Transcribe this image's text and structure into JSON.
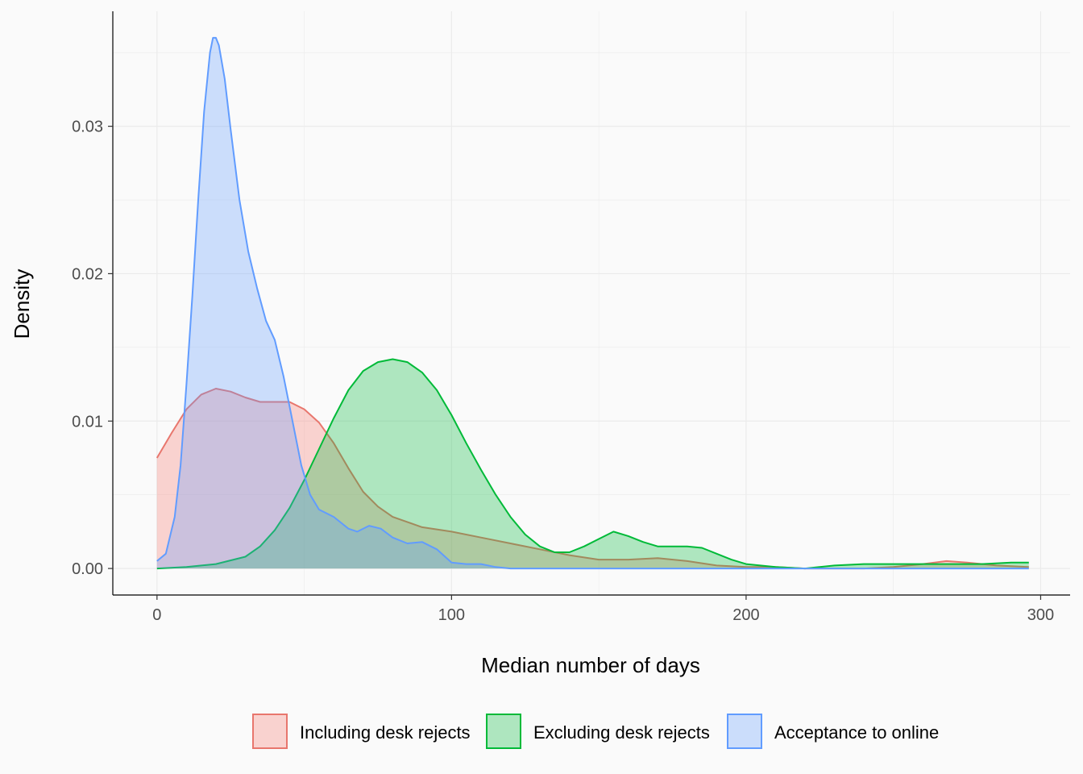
{
  "chart_data": {
    "type": "area",
    "subtype": "density",
    "title": "",
    "xlabel": "Median number of days",
    "ylabel": "Density",
    "xlim": [
      -15,
      310
    ],
    "ylim": [
      -0.0018,
      0.0378
    ],
    "x_ticks": [
      0,
      100,
      200,
      300
    ],
    "x_tick_labels": [
      "0",
      "100",
      "200",
      "300"
    ],
    "y_ticks": [
      0.0,
      0.01,
      0.02,
      0.03
    ],
    "y_tick_labels": [
      "0.00",
      "0.01",
      "0.02",
      "0.03"
    ],
    "grid": true,
    "legend_position": "bottom",
    "series": [
      {
        "name": "Including desk rejects",
        "line_color": "#e8766d",
        "fill_color": "#f8766d",
        "fill_opacity": 0.3,
        "points": [
          [
            0,
            0.0075
          ],
          [
            5,
            0.0092
          ],
          [
            10,
            0.0108
          ],
          [
            15,
            0.0118
          ],
          [
            20,
            0.0122
          ],
          [
            25,
            0.012
          ],
          [
            30,
            0.0116
          ],
          [
            35,
            0.0113
          ],
          [
            40,
            0.0113
          ],
          [
            45,
            0.0113
          ],
          [
            50,
            0.0108
          ],
          [
            55,
            0.0099
          ],
          [
            60,
            0.0085
          ],
          [
            65,
            0.0068
          ],
          [
            70,
            0.0052
          ],
          [
            75,
            0.0042
          ],
          [
            80,
            0.0035
          ],
          [
            90,
            0.0028
          ],
          [
            100,
            0.0025
          ],
          [
            110,
            0.0021
          ],
          [
            120,
            0.0017
          ],
          [
            130,
            0.0013
          ],
          [
            140,
            0.0009
          ],
          [
            150,
            0.0006
          ],
          [
            160,
            0.0006
          ],
          [
            170,
            0.0007
          ],
          [
            180,
            0.0005
          ],
          [
            190,
            0.0002
          ],
          [
            200,
            0.0001
          ],
          [
            210,
            0.0001
          ],
          [
            220,
            0.0
          ],
          [
            230,
            0.0
          ],
          [
            240,
            0.0
          ],
          [
            250,
            0.0001
          ],
          [
            260,
            0.0003
          ],
          [
            268,
            0.0005
          ],
          [
            275,
            0.0004
          ],
          [
            285,
            0.0002
          ],
          [
            296,
            0.0001
          ]
        ]
      },
      {
        "name": "Excluding desk rejects",
        "line_color": "#00ba38",
        "fill_color": "#00ba38",
        "fill_opacity": 0.3,
        "points": [
          [
            0,
            0.0
          ],
          [
            10,
            0.0001
          ],
          [
            20,
            0.0003
          ],
          [
            30,
            0.0008
          ],
          [
            35,
            0.0015
          ],
          [
            40,
            0.0026
          ],
          [
            45,
            0.0041
          ],
          [
            50,
            0.006
          ],
          [
            55,
            0.0081
          ],
          [
            60,
            0.0102
          ],
          [
            65,
            0.0121
          ],
          [
            70,
            0.0134
          ],
          [
            75,
            0.014
          ],
          [
            80,
            0.0142
          ],
          [
            85,
            0.014
          ],
          [
            90,
            0.0133
          ],
          [
            95,
            0.0121
          ],
          [
            100,
            0.0104
          ],
          [
            105,
            0.0085
          ],
          [
            110,
            0.0067
          ],
          [
            115,
            0.005
          ],
          [
            120,
            0.0035
          ],
          [
            125,
            0.0023
          ],
          [
            130,
            0.0015
          ],
          [
            135,
            0.0011
          ],
          [
            140,
            0.0011
          ],
          [
            145,
            0.0015
          ],
          [
            150,
            0.002
          ],
          [
            155,
            0.0025
          ],
          [
            160,
            0.0022
          ],
          [
            165,
            0.0018
          ],
          [
            170,
            0.0015
          ],
          [
            180,
            0.0015
          ],
          [
            185,
            0.0014
          ],
          [
            190,
            0.001
          ],
          [
            195,
            0.0006
          ],
          [
            200,
            0.0003
          ],
          [
            210,
            0.0001
          ],
          [
            220,
            0.0
          ],
          [
            230,
            0.0002
          ],
          [
            240,
            0.0003
          ],
          [
            250,
            0.0003
          ],
          [
            260,
            0.0003
          ],
          [
            270,
            0.0003
          ],
          [
            280,
            0.0003
          ],
          [
            290,
            0.0004
          ],
          [
            296,
            0.0004
          ]
        ]
      },
      {
        "name": "Acceptance to online",
        "line_color": "#619cff",
        "fill_color": "#619cff",
        "fill_opacity": 0.3,
        "points": [
          [
            0,
            0.0005
          ],
          [
            3,
            0.001
          ],
          [
            6,
            0.0035
          ],
          [
            8,
            0.007
          ],
          [
            10,
            0.0125
          ],
          [
            12,
            0.0185
          ],
          [
            14,
            0.025
          ],
          [
            16,
            0.031
          ],
          [
            18,
            0.035
          ],
          [
            19,
            0.036
          ],
          [
            20,
            0.036
          ],
          [
            21,
            0.0355
          ],
          [
            23,
            0.0332
          ],
          [
            25,
            0.0298
          ],
          [
            28,
            0.025
          ],
          [
            31,
            0.0215
          ],
          [
            34,
            0.019
          ],
          [
            37,
            0.0168
          ],
          [
            40,
            0.0155
          ],
          [
            43,
            0.013
          ],
          [
            46,
            0.01
          ],
          [
            49,
            0.007
          ],
          [
            52,
            0.005
          ],
          [
            55,
            0.004
          ],
          [
            60,
            0.0035
          ],
          [
            65,
            0.0027
          ],
          [
            68,
            0.0025
          ],
          [
            72,
            0.0029
          ],
          [
            76,
            0.0027
          ],
          [
            80,
            0.0021
          ],
          [
            85,
            0.0017
          ],
          [
            90,
            0.0018
          ],
          [
            95,
            0.0013
          ],
          [
            100,
            0.0004
          ],
          [
            105,
            0.0003
          ],
          [
            110,
            0.0003
          ],
          [
            115,
            0.0001
          ],
          [
            120,
            0.0
          ],
          [
            296,
            0.0
          ]
        ]
      }
    ]
  }
}
